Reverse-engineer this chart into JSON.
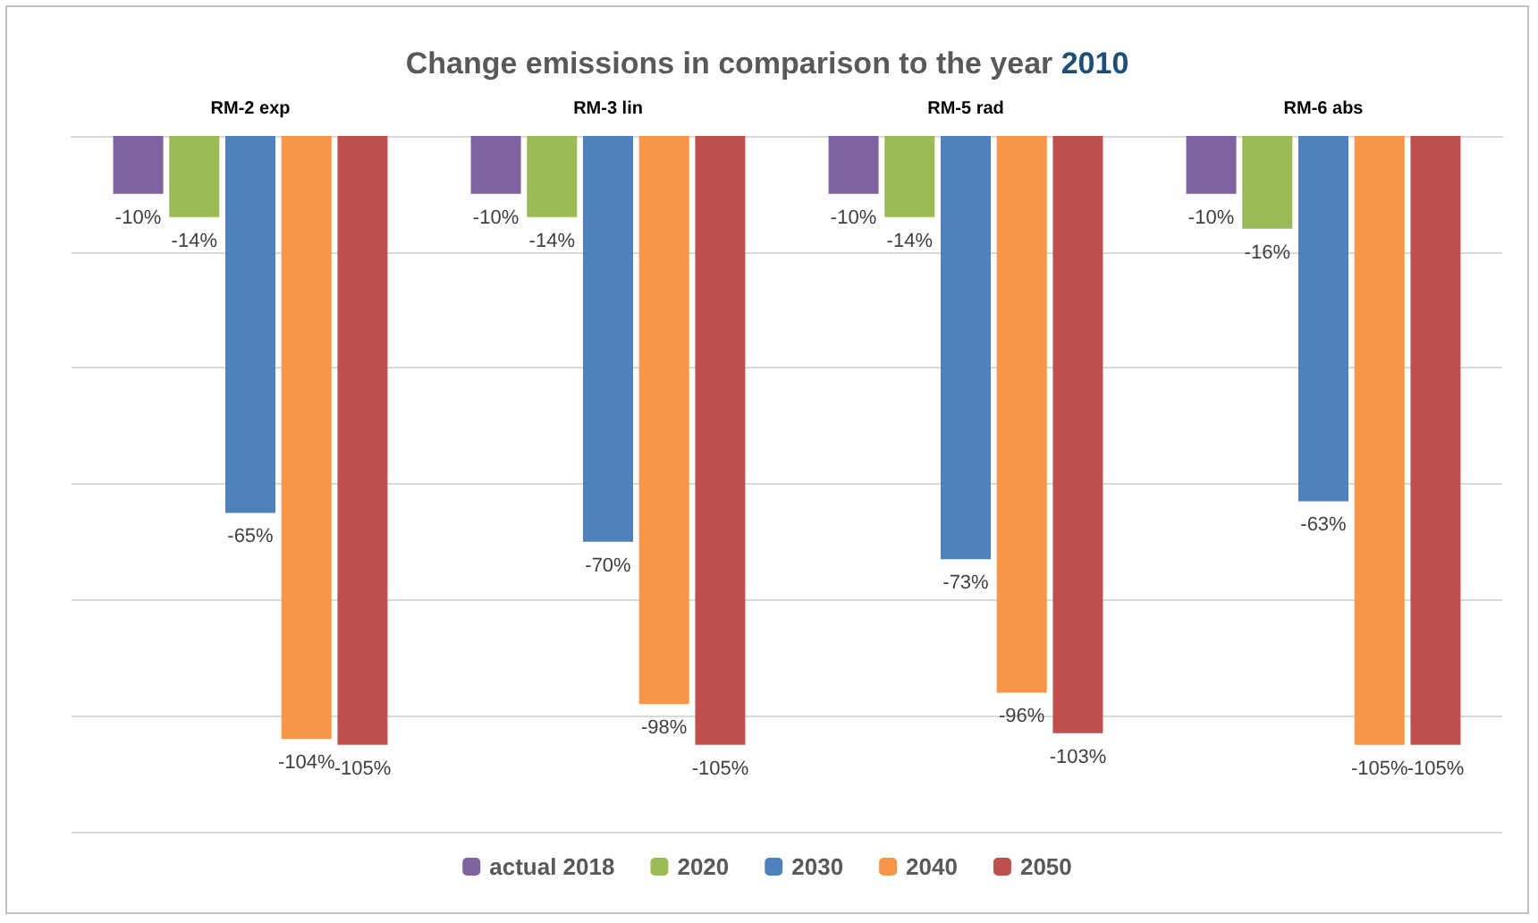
{
  "chart_data": {
    "type": "bar",
    "title": "Change emissions in comparison to the year 2010",
    "categories": [
      "RM-2 exp",
      "RM-3 lin",
      "RM-5 rad",
      "RM-6 abs"
    ],
    "series": [
      {
        "name": "actual 2018",
        "color": "#8064a2",
        "values": [
          -10,
          -10,
          -10,
          -10
        ],
        "value_labels": [
          "-10%",
          "-10%",
          "-10%",
          "-10%"
        ]
      },
      {
        "name": "2020",
        "color": "#9bbb59",
        "values": [
          -14,
          -14,
          -14,
          -16
        ],
        "value_labels": [
          "-14%",
          "-14%",
          "-14%",
          "-16%"
        ]
      },
      {
        "name": "2030",
        "color": "#4f81bd",
        "values": [
          -65,
          -70,
          -73,
          -63
        ],
        "value_labels": [
          "-65%",
          "-70%",
          "-73%",
          "-63%"
        ]
      },
      {
        "name": "2040",
        "color": "#f79646",
        "values": [
          -104,
          -98,
          -96,
          -105
        ],
        "value_labels": [
          "-104%",
          "-98%",
          "-96%",
          "-105%"
        ]
      },
      {
        "name": "2050",
        "color": "#c0504d",
        "values": [
          -105,
          -105,
          -103,
          -105
        ],
        "value_labels": [
          "-105%",
          "-105%",
          "-103%",
          "-105%"
        ]
      }
    ],
    "ylim": [
      -120,
      0
    ],
    "yticks": [
      {
        "value": -120,
        "label": null
      },
      {
        "value": -100,
        "label": null
      },
      {
        "value": -80,
        "label": null
      },
      {
        "value": -60,
        "label": null
      },
      {
        "value": -40,
        "label": null
      },
      {
        "value": -20,
        "label": null
      },
      {
        "value": 0,
        "label": null
      }
    ],
    "grid": true,
    "legend": "bottom"
  }
}
